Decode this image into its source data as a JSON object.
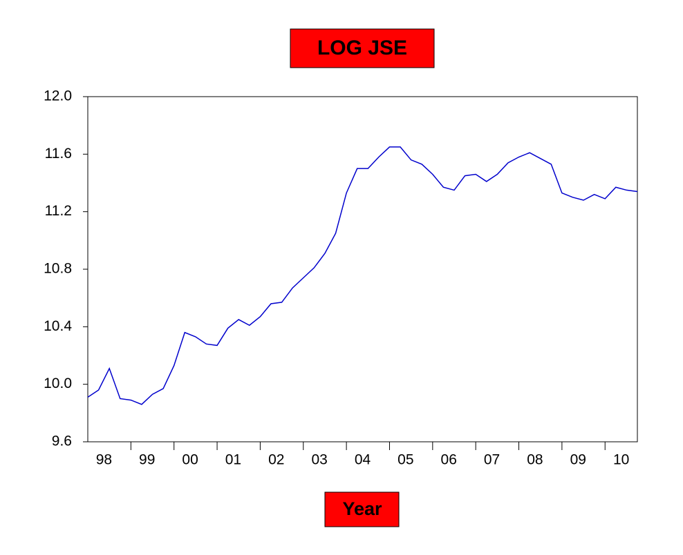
{
  "chart_data": {
    "type": "line",
    "title": "LOG JSE",
    "x_label": "Year",
    "categories": [
      "98",
      null,
      null,
      null,
      "99",
      null,
      null,
      null,
      "00",
      null,
      null,
      null,
      "01",
      null,
      null,
      null,
      "02",
      null,
      null,
      null,
      "03",
      null,
      null,
      null,
      "04",
      null,
      null,
      null,
      "05",
      null,
      null,
      null,
      "06",
      null,
      null,
      null,
      "07",
      null,
      null,
      null,
      "08",
      null,
      null,
      null,
      "09",
      null,
      null,
      null,
      "10",
      null,
      null,
      null
    ],
    "series": [
      {
        "name": "LOG JSE",
        "color": "#0000cc",
        "values": [
          9.91,
          9.96,
          10.11,
          9.9,
          9.89,
          9.86,
          9.93,
          9.97,
          10.13,
          10.36,
          10.33,
          10.28,
          10.27,
          10.39,
          10.45,
          10.41,
          10.47,
          10.56,
          10.57,
          10.67,
          10.74,
          10.81,
          10.91,
          11.05,
          11.33,
          11.5,
          11.5,
          11.58,
          11.65,
          11.65,
          11.56,
          11.53,
          11.46,
          11.37,
          11.35,
          11.45,
          11.46,
          11.41,
          11.46,
          11.54,
          11.58,
          11.61,
          11.57,
          11.53,
          11.33,
          11.3,
          11.28,
          11.32,
          11.29,
          11.37,
          11.35,
          11.34
        ]
      }
    ],
    "ylim": [
      9.6,
      12.0
    ],
    "yticks": [
      9.6,
      {
        "value": 10.0,
        "label": "10.0"
      },
      10.4,
      10.8,
      11.2,
      11.6,
      {
        "value": 12.0,
        "label": "12.0"
      }
    ],
    "grid": false
  }
}
